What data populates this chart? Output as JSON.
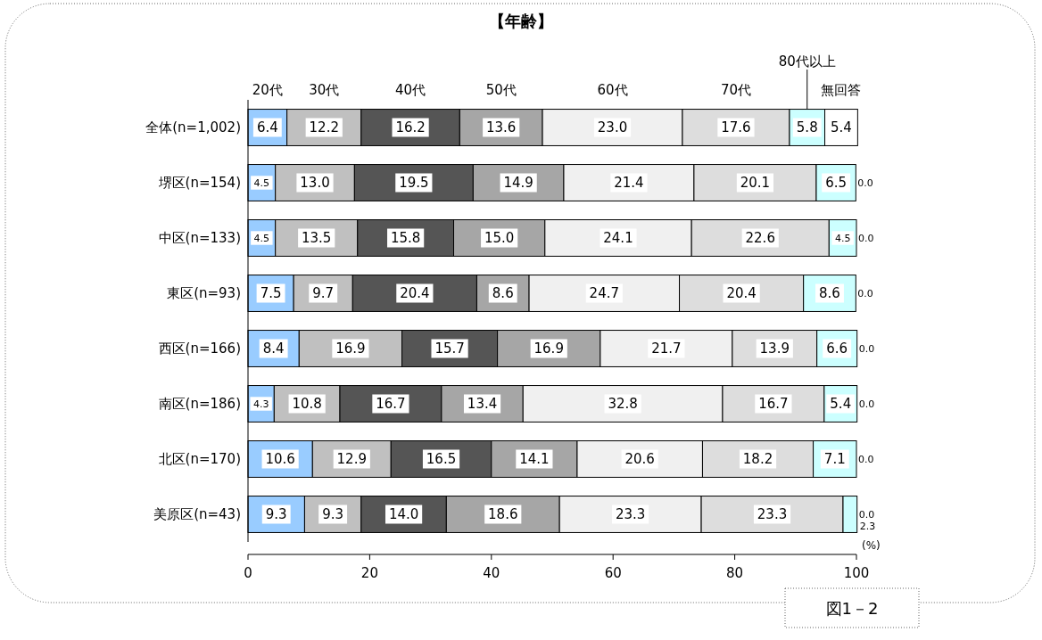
{
  "chart_data": {
    "type": "bar",
    "orientation": "horizontal",
    "stacked": true,
    "title": "【年齢】",
    "xlabel": "(%)",
    "annotations": [
      "図1－2"
    ],
    "categories": [
      "全体(n=1,002)",
      "堺区(n=154)",
      "中区(n=133)",
      "東区(n=93)",
      "西区(n=166)",
      "南区(n=186)",
      "北区(n=170)",
      "美原区(n=43)"
    ],
    "xlim": [
      0,
      100
    ],
    "xticks": [
      0,
      20,
      40,
      60,
      80,
      100
    ],
    "legend": "top",
    "grid": false,
    "series": [
      {
        "name": "20代",
        "color": "#99ccff",
        "values": [
          6.4,
          4.5,
          4.5,
          7.5,
          8.4,
          4.3,
          10.6,
          9.3
        ],
        "value_labels": [
          "6.4",
          "4.5",
          "4.5",
          "7.5",
          "8.4",
          "4.3",
          "10.6",
          "9.3"
        ]
      },
      {
        "name": "30代",
        "color": "#c0c0c0",
        "values": [
          12.2,
          13.0,
          13.5,
          9.7,
          16.9,
          10.8,
          12.9,
          9.3
        ],
        "value_labels": [
          "12.2",
          "13.0",
          "13.5",
          "9.7",
          "16.9",
          "10.8",
          "12.9",
          "9.3"
        ]
      },
      {
        "name": "40代",
        "color": "#555555",
        "values": [
          16.2,
          19.5,
          15.8,
          20.4,
          15.7,
          16.7,
          16.5,
          14.0
        ],
        "value_labels": [
          "16.2",
          "19.5",
          "15.8",
          "20.4",
          "15.7",
          "16.7",
          "16.5",
          "14.0"
        ]
      },
      {
        "name": "50代",
        "color": "#a6a6a6",
        "values": [
          13.6,
          14.9,
          15.0,
          8.6,
          16.9,
          13.4,
          14.1,
          18.6
        ],
        "value_labels": [
          "13.6",
          "14.9",
          "15.0",
          "8.6",
          "16.9",
          "13.4",
          "14.1",
          "18.6"
        ]
      },
      {
        "name": "60代",
        "color": "#f0f0f0",
        "values": [
          23.0,
          21.4,
          24.1,
          24.7,
          21.7,
          32.8,
          20.6,
          23.3
        ],
        "value_labels": [
          "23.0",
          "21.4",
          "24.1",
          "24.7",
          "21.7",
          "32.8",
          "20.6",
          "23.3"
        ]
      },
      {
        "name": "70代",
        "color": "#dddddd",
        "values": [
          17.6,
          20.1,
          22.6,
          20.4,
          13.9,
          16.7,
          18.2,
          23.3
        ],
        "value_labels": [
          "17.6",
          "20.1",
          "22.6",
          "20.4",
          "13.9",
          "16.7",
          "18.2",
          "23.3"
        ]
      },
      {
        "name": "80代以上",
        "color": "#ccffff",
        "values": [
          5.8,
          6.5,
          4.5,
          8.6,
          6.6,
          5.4,
          7.1,
          2.3
        ],
        "value_labels": [
          "5.8",
          "6.5",
          "4.5",
          "8.6",
          "6.6",
          "5.4",
          "7.1",
          "2.3"
        ]
      },
      {
        "name": "無回答",
        "color": "#ffffff",
        "values": [
          5.4,
          0.0,
          0.0,
          0.0,
          0.0,
          0.0,
          0.0,
          0.0
        ],
        "value_labels": [
          "5.4",
          "0.0",
          "0.0",
          "0.0",
          "0.0",
          "0.0",
          "0.0",
          "0.0"
        ]
      }
    ]
  }
}
